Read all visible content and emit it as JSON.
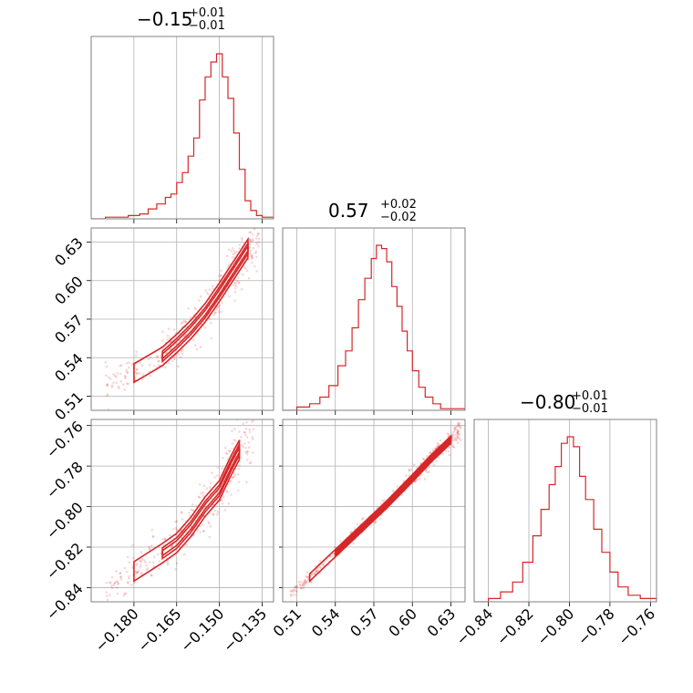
{
  "figure": {
    "type": "corner-plot",
    "color": "#d62728",
    "grid": true
  },
  "chart_data": [
    {
      "type": "histogram",
      "panel": "diag-1",
      "title": {
        "median": "−0.15",
        "plus": "+0.01",
        "minus": "−0.01"
      },
      "xlim": [
        -0.195,
        -0.131
      ],
      "x": [
        -0.195,
        -0.19,
        -0.186,
        -0.182,
        -0.178,
        -0.175,
        -0.172,
        -0.169,
        -0.167,
        -0.165,
        -0.163,
        -0.161,
        -0.159,
        -0.157,
        -0.155,
        -0.153,
        -0.151,
        -0.149,
        -0.147,
        -0.145,
        -0.143,
        -0.141,
        -0.139,
        -0.137,
        -0.135,
        -0.131
      ],
      "y": [
        0,
        0.01,
        0.01,
        0.02,
        0.03,
        0.06,
        0.09,
        0.13,
        0.15,
        0.22,
        0.28,
        0.38,
        0.49,
        0.72,
        0.86,
        0.95,
        1.0,
        0.86,
        0.73,
        0.52,
        0.3,
        0.11,
        0.05,
        0.02,
        0.01,
        0
      ]
    },
    {
      "type": "histogram",
      "panel": "diag-2",
      "title": {
        "median": "0.57",
        "plus": "+0.02",
        "minus": "−0.02"
      },
      "xlim": [
        0.499,
        0.641
      ],
      "x": [
        0.499,
        0.51,
        0.52,
        0.528,
        0.535,
        0.542,
        0.548,
        0.553,
        0.558,
        0.563,
        0.568,
        0.572,
        0.576,
        0.58,
        0.584,
        0.588,
        0.592,
        0.596,
        0.6,
        0.605,
        0.61,
        0.616,
        0.622,
        0.63,
        0.641
      ],
      "y": [
        0,
        0.02,
        0.04,
        0.08,
        0.15,
        0.27,
        0.36,
        0.5,
        0.67,
        0.8,
        0.92,
        1.0,
        0.98,
        0.9,
        0.75,
        0.63,
        0.48,
        0.36,
        0.24,
        0.14,
        0.08,
        0.04,
        0.01,
        0.01,
        0
      ]
    },
    {
      "type": "histogram",
      "panel": "diag-3",
      "title": {
        "median": "−0.80",
        "plus": "+0.01",
        "minus": "−0.01"
      },
      "xlim": [
        -0.847,
        -0.757
      ],
      "x": [
        -0.847,
        -0.84,
        -0.834,
        -0.828,
        -0.823,
        -0.818,
        -0.814,
        -0.81,
        -0.807,
        -0.804,
        -0.801,
        -0.798,
        -0.795,
        -0.792,
        -0.788,
        -0.784,
        -0.78,
        -0.776,
        -0.771,
        -0.765,
        -0.757
      ],
      "y": [
        0,
        0.02,
        0.06,
        0.12,
        0.24,
        0.4,
        0.56,
        0.71,
        0.82,
        0.96,
        1.0,
        0.94,
        0.76,
        0.62,
        0.44,
        0.3,
        0.18,
        0.09,
        0.04,
        0.02,
        0
      ]
    },
    {
      "type": "scatter-contour",
      "panel": "pair-2-1",
      "xlim": [
        -0.195,
        -0.131
      ],
      "ylim": [
        0.499,
        0.641
      ],
      "ridge": [
        [
          -0.19,
          0.52
        ],
        [
          -0.18,
          0.528
        ],
        [
          -0.17,
          0.541
        ],
        [
          -0.165,
          0.551
        ],
        [
          -0.16,
          0.562
        ],
        [
          -0.155,
          0.575
        ],
        [
          -0.15,
          0.591
        ],
        [
          -0.145,
          0.608
        ],
        [
          -0.14,
          0.625
        ],
        [
          -0.136,
          0.635
        ]
      ],
      "spread": 0.006
    },
    {
      "type": "scatter-contour",
      "panel": "pair-3-1",
      "xlim": [
        -0.195,
        -0.131
      ],
      "ylim": [
        -0.847,
        -0.757
      ],
      "ridge": [
        [
          -0.19,
          -0.843
        ],
        [
          -0.18,
          -0.832
        ],
        [
          -0.17,
          -0.823
        ],
        [
          -0.165,
          -0.818
        ],
        [
          -0.16,
          -0.81
        ],
        [
          -0.155,
          -0.8
        ],
        [
          -0.15,
          -0.792
        ],
        [
          -0.146,
          -0.78
        ],
        [
          -0.143,
          -0.772
        ],
        [
          -0.138,
          -0.766
        ]
      ],
      "spread": 0.004
    },
    {
      "type": "scatter-contour",
      "panel": "pair-3-2",
      "xlim": [
        0.499,
        0.641
      ],
      "ylim": [
        -0.847,
        -0.757
      ],
      "ridge": [
        [
          0.505,
          -0.843
        ],
        [
          0.52,
          -0.835
        ],
        [
          0.54,
          -0.823
        ],
        [
          0.56,
          -0.811
        ],
        [
          0.58,
          -0.799
        ],
        [
          0.6,
          -0.786
        ],
        [
          0.615,
          -0.776
        ],
        [
          0.63,
          -0.767
        ],
        [
          0.638,
          -0.761
        ]
      ],
      "spread": 0.0015
    }
  ],
  "axes": {
    "p1": {
      "ticks": [
        -0.18,
        -0.165,
        -0.15,
        -0.135
      ],
      "labels": [
        "−0.180",
        "−0.165",
        "−0.150",
        "−0.135"
      ]
    },
    "p2": {
      "ticks": [
        0.51,
        0.54,
        0.57,
        0.6,
        0.63
      ],
      "labels": [
        "0.51",
        "0.54",
        "0.57",
        "0.60",
        "0.63"
      ]
    },
    "p3": {
      "ticks": [
        -0.84,
        -0.82,
        -0.8,
        -0.78,
        -0.76
      ],
      "labels": [
        "−0.84",
        "−0.82",
        "−0.80",
        "−0.78",
        "−0.76"
      ]
    }
  }
}
